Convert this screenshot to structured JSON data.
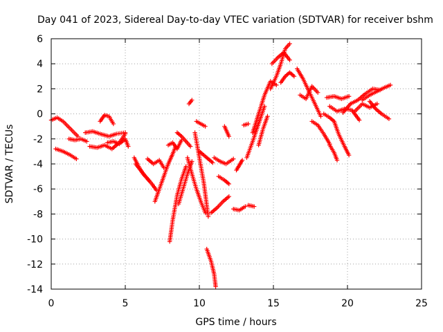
{
  "chart_data": {
    "type": "scatter",
    "title": "Day 041 of 2023, Sidereal Day-to-day VTEC variation (SDTVAR) for receiver bshm",
    "xlabel": "GPS time / hours",
    "ylabel": "SDTVAR / TECUs",
    "xlim": [
      0,
      25
    ],
    "ylim": [
      -14,
      6
    ],
    "x_ticks": [
      "0",
      "5",
      "10",
      "15",
      "20",
      "25"
    ],
    "y_ticks": [
      "6",
      "4",
      "2",
      "0",
      "-2",
      "-4",
      "-6",
      "-8",
      "-10",
      "-12",
      "-14"
    ],
    "grid": true,
    "marker": "+",
    "color": "#ff0000",
    "tracks": [
      {
        "x": [
          0.0,
          0.4,
          0.8,
          1.3,
          1.8
        ],
        "y": [
          -0.5,
          -0.3,
          -0.6,
          -1.2,
          -1.8
        ]
      },
      {
        "x": [
          0.3,
          0.8,
          1.3,
          1.7
        ],
        "y": [
          -2.8,
          -3.0,
          -3.3,
          -3.6
        ]
      },
      {
        "x": [
          1.2,
          1.6,
          2.0,
          2.4
        ],
        "y": [
          -2.0,
          -2.1,
          -2.0,
          -2.2
        ]
      },
      {
        "x": [
          2.3,
          2.8,
          3.3,
          3.9,
          4.4,
          5.0
        ],
        "y": [
          -1.5,
          -1.4,
          -1.6,
          -1.8,
          -1.6,
          -1.5
        ]
      },
      {
        "x": [
          2.6,
          3.1,
          3.6,
          4.1,
          4.6,
          5.0
        ],
        "y": [
          -2.6,
          -2.7,
          -2.5,
          -2.8,
          -2.3,
          -1.6
        ]
      },
      {
        "x": [
          3.3,
          3.6,
          3.9,
          4.2
        ],
        "y": [
          -0.6,
          -0.1,
          -0.2,
          -0.8
        ]
      },
      {
        "x": [
          3.8,
          4.2,
          4.6,
          5.0,
          5.2
        ],
        "y": [
          -2.3,
          -2.2,
          -2.4,
          -2.0,
          -2.6
        ]
      },
      {
        "x": [
          5.6,
          5.9,
          6.2,
          6.6
        ],
        "y": [
          -3.5,
          -4.2,
          -4.8,
          -5.3
        ]
      },
      {
        "x": [
          5.7,
          6.1,
          6.5,
          6.8,
          7.1
        ],
        "y": [
          -4.0,
          -4.6,
          -5.2,
          -5.6,
          -6.1
        ]
      },
      {
        "x": [
          6.5,
          6.9,
          7.3,
          7.6
        ],
        "y": [
          -3.6,
          -4.0,
          -3.7,
          -4.3
        ]
      },
      {
        "x": [
          7.0,
          7.3,
          7.6,
          7.9,
          8.2,
          8.4
        ],
        "y": [
          -7.0,
          -6.0,
          -5.0,
          -4.0,
          -3.2,
          -2.6
        ]
      },
      {
        "x": [
          7.9,
          8.2,
          8.5,
          8.8
        ],
        "y": [
          -2.5,
          -2.3,
          -2.8,
          -2.1
        ]
      },
      {
        "x": [
          8.0,
          8.2,
          8.5,
          8.8,
          9.1
        ],
        "y": [
          -10.2,
          -8.5,
          -6.5,
          -5.2,
          -4.2
        ]
      },
      {
        "x": [
          8.5,
          8.8,
          9.1,
          9.4
        ],
        "y": [
          -1.5,
          -1.8,
          -2.2,
          -2.6
        ]
      },
      {
        "x": [
          8.6,
          8.9,
          9.2,
          9.5
        ],
        "y": [
          -7.2,
          -6.0,
          -4.8,
          -3.8
        ]
      },
      {
        "x": [
          9.2,
          9.5,
          9.8,
          10.1,
          10.4
        ],
        "y": [
          -3.5,
          -4.8,
          -6.0,
          -7.0,
          -7.9
        ]
      },
      {
        "x": [
          9.3,
          9.5
        ],
        "y": [
          0.8,
          1.1
        ]
      },
      {
        "x": [
          9.7,
          10.0,
          10.3,
          10.6
        ],
        "y": [
          -1.5,
          -3.5,
          -5.5,
          -8.2
        ]
      },
      {
        "x": [
          9.8,
          10.1,
          10.4
        ],
        "y": [
          -0.6,
          -0.8,
          -1.0
        ]
      },
      {
        "x": [
          10.0,
          10.3,
          10.6,
          10.9
        ],
        "y": [
          -3.0,
          -3.3,
          -3.6,
          -3.9
        ]
      },
      {
        "x": [
          10.5,
          10.8,
          11.0,
          11.1
        ],
        "y": [
          -10.8,
          -11.8,
          -12.8,
          -13.8
        ]
      },
      {
        "x": [
          10.8,
          11.2,
          11.6,
          12.0
        ],
        "y": [
          -7.9,
          -7.5,
          -7.0,
          -6.6
        ]
      },
      {
        "x": [
          11.0,
          11.4,
          11.8,
          12.3
        ],
        "y": [
          -3.5,
          -3.8,
          -4.0,
          -3.6
        ]
      },
      {
        "x": [
          11.3,
          11.7,
          12.0
        ],
        "y": [
          -5.0,
          -5.3,
          -5.6
        ]
      },
      {
        "x": [
          11.7,
          12.0
        ],
        "y": [
          -1.0,
          -1.8
        ]
      },
      {
        "x": [
          12.3,
          12.7,
          13.1
        ],
        "y": [
          -7.6,
          -7.7,
          -7.4
        ]
      },
      {
        "x": [
          12.5,
          12.7,
          12.9
        ],
        "y": [
          -4.5,
          -4.1,
          -3.7
        ]
      },
      {
        "x": [
          13.0,
          13.3
        ],
        "y": [
          -0.9,
          -0.8
        ]
      },
      {
        "x": [
          13.3,
          13.7
        ],
        "y": [
          -7.3,
          -7.4
        ]
      },
      {
        "x": [
          13.2,
          13.6,
          14.0,
          14.4
        ],
        "y": [
          -3.5,
          -2.2,
          -0.8,
          0.6
        ]
      },
      {
        "x": [
          13.6,
          14.0,
          14.4,
          14.8,
          15.2
        ],
        "y": [
          -1.5,
          0.0,
          1.5,
          2.6,
          2.3
        ]
      },
      {
        "x": [
          14.0,
          14.3,
          14.6
        ],
        "y": [
          -2.5,
          -1.2,
          -0.2
        ]
      },
      {
        "x": [
          14.8,
          15.2,
          15.5,
          15.8,
          16.1
        ],
        "y": [
          2.0,
          3.0,
          4.0,
          5.2,
          5.6
        ]
      },
      {
        "x": [
          14.9,
          15.3,
          15.7,
          16.1
        ],
        "y": [
          4.0,
          4.5,
          4.9,
          4.3
        ]
      },
      {
        "x": [
          15.5,
          15.8,
          16.1,
          16.4
        ],
        "y": [
          2.5,
          3.0,
          3.3,
          3.0
        ]
      },
      {
        "x": [
          16.6,
          17.0,
          17.4,
          17.8,
          18.2
        ],
        "y": [
          3.6,
          2.8,
          1.8,
          0.8,
          -0.2
        ]
      },
      {
        "x": [
          16.8,
          17.2,
          17.6,
          18.0
        ],
        "y": [
          1.5,
          1.2,
          2.2,
          1.7
        ]
      },
      {
        "x": [
          17.6,
          18.0,
          18.4,
          18.8
        ],
        "y": [
          -0.6,
          -0.9,
          -1.6,
          -2.4
        ]
      },
      {
        "x": [
          18.4,
          18.8,
          19.1,
          19.4,
          19.8,
          20.1
        ],
        "y": [
          0.0,
          -0.3,
          -0.6,
          -1.6,
          -2.6,
          -3.3
        ]
      },
      {
        "x": [
          18.8,
          19.1,
          19.3
        ],
        "y": [
          -2.5,
          -3.1,
          -3.7
        ]
      },
      {
        "x": [
          18.6,
          19.1,
          19.6,
          20.1
        ],
        "y": [
          1.3,
          1.4,
          1.2,
          1.4
        ]
      },
      {
        "x": [
          18.8,
          19.3,
          19.8,
          20.3,
          20.8
        ],
        "y": [
          0.6,
          0.2,
          0.4,
          0.3,
          -0.5
        ]
      },
      {
        "x": [
          19.7,
          20.2,
          20.7,
          21.2,
          21.7,
          22.2
        ],
        "y": [
          0.1,
          0.8,
          1.1,
          1.6,
          2.0,
          1.9
        ]
      },
      {
        "x": [
          20.5,
          21.0,
          21.5,
          22.0
        ],
        "y": [
          0.2,
          0.8,
          0.5,
          0.8
        ]
      },
      {
        "x": [
          21.5,
          21.9,
          22.3,
          22.8
        ],
        "y": [
          1.0,
          0.4,
          0.0,
          -0.4
        ]
      },
      {
        "x": [
          21.0,
          21.5,
          22.0,
          22.5,
          22.9
        ],
        "y": [
          1.1,
          1.5,
          1.8,
          2.1,
          2.3
        ]
      }
    ]
  }
}
